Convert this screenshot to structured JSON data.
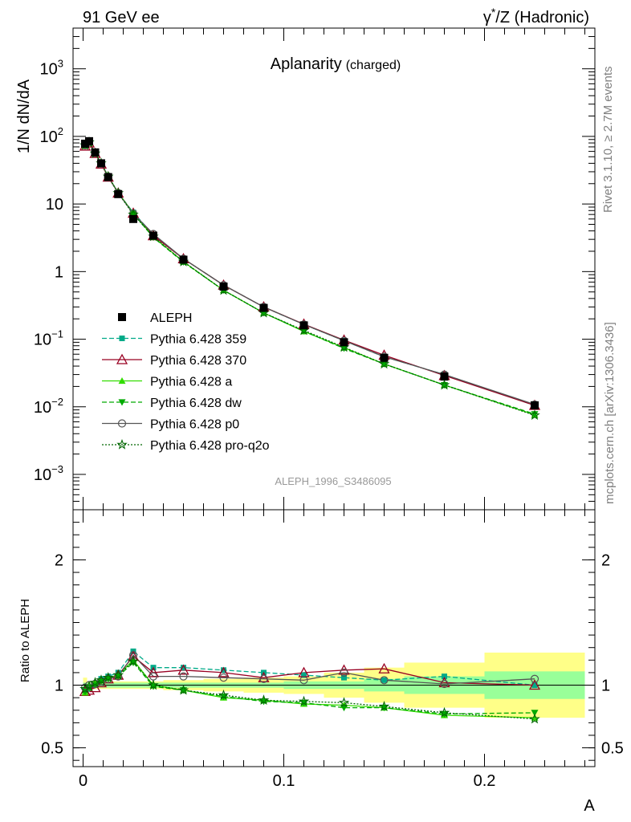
{
  "header": {
    "left": "91 GeV ee",
    "right_prefix": "γ",
    "right_super": "*",
    "right_suffix": "/Z (Hadronic)"
  },
  "title": {
    "main": "Aplanarity",
    "sub": "(charged)"
  },
  "side_labels": {
    "rivet": "Rivet 3.1.10, ≥ 2.7M events",
    "mcplots": "mcplots.cern.ch [arXiv:1306.3436]"
  },
  "analysis_id": "ALEPH_1996_S3486095",
  "colors": {
    "data": "#000000",
    "p359": "#00aa88",
    "p370": "#990022",
    "pa": "#33dd00",
    "pdw": "#00aa00",
    "pp0": "#555555",
    "pq2o": "#006600",
    "band_inner": "#99ff99",
    "band_outer": "#ffff88"
  },
  "chart_data": [
    {
      "type": "line",
      "log_y": true,
      "ylabel": "1/N dN/dA",
      "xlim": [
        -0.005,
        0.255
      ],
      "ylim": [
        0.0003,
        4000
      ],
      "y_ticks": [
        {
          "v": 0.001,
          "base": "10",
          "exp": "−3"
        },
        {
          "v": 0.01,
          "base": "10",
          "exp": "−2"
        },
        {
          "v": 0.1,
          "base": "10",
          "exp": "−1"
        },
        {
          "v": 1,
          "base": "1",
          "exp": ""
        },
        {
          "v": 10,
          "base": "10",
          "exp": ""
        },
        {
          "v": 100,
          "base": "10",
          "exp": "2"
        },
        {
          "v": 1000,
          "base": "10",
          "exp": "3"
        }
      ],
      "legend_position": "middle-left",
      "x": [
        0.001,
        0.003,
        0.006,
        0.009,
        0.0125,
        0.0175,
        0.025,
        0.035,
        0.05,
        0.07,
        0.09,
        0.11,
        0.13,
        0.15,
        0.18,
        0.225
      ],
      "data": {
        "name": "ALEPH",
        "values": [
          78,
          85,
          58,
          40,
          25,
          14,
          6,
          3.4,
          1.5,
          0.6,
          0.29,
          0.16,
          0.09,
          0.053,
          0.028,
          0.0105
        ]
      },
      "series": [
        {
          "name": "Pythia 6.428 359",
          "key": "p359",
          "marker": "square",
          "dash": "dashed",
          "values": [
            75,
            82,
            57,
            40,
            25.5,
            14.5,
            7.5,
            3.5,
            1.55,
            0.63,
            0.3,
            0.165,
            0.095,
            0.055,
            0.03,
            0.0105
          ]
        },
        {
          "name": "Pythia 6.428 370",
          "key": "p370",
          "marker": "triangle-open",
          "dash": "solid",
          "values": [
            72,
            80,
            56,
            39,
            25,
            14.5,
            7.3,
            3.4,
            1.55,
            0.63,
            0.3,
            0.167,
            0.097,
            0.058,
            0.029,
            0.0105
          ]
        },
        {
          "name": "Pythia 6.428 a",
          "key": "pa",
          "marker": "triangle",
          "dash": "solid",
          "values": [
            73,
            80,
            56,
            40,
            25.5,
            14.7,
            7.3,
            3.25,
            1.4,
            0.53,
            0.245,
            0.13,
            0.075,
            0.043,
            0.021,
            0.0076
          ]
        },
        {
          "name": "Pythia 6.428 dw",
          "key": "pdw",
          "marker": "triangle-down",
          "dash": "dashed",
          "values": [
            73,
            80,
            56,
            40,
            25.5,
            14.5,
            7.2,
            3.2,
            1.38,
            0.53,
            0.245,
            0.132,
            0.073,
            0.043,
            0.021,
            0.0078
          ]
        },
        {
          "name": "Pythia 6.428 p0",
          "key": "pp0",
          "marker": "circle-open",
          "dash": "solid",
          "values": [
            74,
            83,
            57,
            40,
            25.5,
            14.5,
            7.2,
            3.6,
            1.55,
            0.63,
            0.3,
            0.165,
            0.095,
            0.055,
            0.03,
            0.0108
          ]
        },
        {
          "name": "Pythia 6.428 pro-q2o",
          "key": "pq2o",
          "marker": "star",
          "dash": "dotted",
          "values": [
            74,
            82,
            56,
            40,
            25.5,
            14.5,
            7,
            3.3,
            1.4,
            0.53,
            0.245,
            0.135,
            0.076,
            0.043,
            0.021,
            0.0075
          ]
        }
      ]
    },
    {
      "type": "line",
      "ylabel": "Ratio to ALEPH",
      "xlabel": "A",
      "xlim": [
        -0.005,
        0.255
      ],
      "ylim": [
        0.35,
        2.4
      ],
      "y_ticks": [
        0.5,
        1,
        2
      ],
      "x_ticks": [
        0,
        0.1,
        0.2
      ],
      "band_edges": [
        0,
        0.002,
        0.004,
        0.008,
        0.01,
        0.015,
        0.02,
        0.03,
        0.04,
        0.06,
        0.08,
        0.1,
        0.12,
        0.14,
        0.16,
        0.2,
        0.25
      ],
      "band_inner": [
        0.02,
        0.02,
        0.02,
        0.02,
        0.02,
        0.02,
        0.02,
        0.02,
        0.02,
        0.02,
        0.02,
        0.03,
        0.03,
        0.05,
        0.07,
        0.11
      ],
      "band_outer": [
        0.06,
        0.03,
        0.03,
        0.03,
        0.03,
        0.03,
        0.03,
        0.03,
        0.04,
        0.05,
        0.06,
        0.07,
        0.1,
        0.14,
        0.18,
        0.26
      ],
      "x": [
        0.001,
        0.003,
        0.006,
        0.009,
        0.0125,
        0.0175,
        0.025,
        0.035,
        0.05,
        0.07,
        0.09,
        0.11,
        0.13,
        0.15,
        0.18,
        0.225
      ],
      "series": [
        {
          "name": "Pythia 6.428 359",
          "key": "p359",
          "marker": "square",
          "dash": "dashed",
          "values": [
            0.96,
            0.97,
            1.0,
            1.05,
            1.07,
            1.1,
            1.27,
            1.14,
            1.14,
            1.12,
            1.1,
            1.08,
            1.06,
            1.04,
            1.07,
            1.0
          ]
        },
        {
          "name": "Pythia 6.428 370",
          "key": "p370",
          "marker": "triangle-open",
          "dash": "solid",
          "values": [
            0.95,
            0.96,
            0.98,
            1.02,
            1.05,
            1.08,
            1.23,
            1.1,
            1.12,
            1.1,
            1.06,
            1.1,
            1.12,
            1.13,
            1.02,
            1.0
          ]
        },
        {
          "name": "Pythia 6.428 a",
          "key": "pa",
          "marker": "triangle",
          "dash": "solid",
          "values": [
            0.94,
            0.98,
            1.02,
            1.04,
            1.06,
            1.08,
            1.2,
            1.0,
            0.96,
            0.9,
            0.88,
            0.85,
            0.84,
            0.82,
            0.76,
            0.74
          ]
        },
        {
          "name": "Pythia 6.428 dw",
          "key": "pdw",
          "marker": "triangle-down",
          "dash": "dashed",
          "values": [
            0.95,
            0.98,
            1.0,
            1.03,
            1.05,
            1.07,
            1.18,
            0.99,
            0.96,
            0.91,
            0.87,
            0.86,
            0.82,
            0.82,
            0.77,
            0.78
          ]
        },
        {
          "name": "Pythia 6.428 p0",
          "key": "pp0",
          "marker": "circle-open",
          "dash": "solid",
          "values": [
            0.98,
            1.0,
            1.01,
            1.03,
            1.05,
            1.07,
            1.24,
            1.07,
            1.07,
            1.06,
            1.05,
            1.04,
            1.1,
            1.04,
            1.01,
            1.05
          ]
        },
        {
          "name": "Pythia 6.428 pro-q2o",
          "key": "pq2o",
          "marker": "star",
          "dash": "dotted",
          "values": [
            0.97,
            0.99,
            1.02,
            1.04,
            1.06,
            1.08,
            1.19,
            1.0,
            0.96,
            0.92,
            0.88,
            0.87,
            0.86,
            0.83,
            0.78,
            0.73
          ]
        }
      ]
    }
  ]
}
